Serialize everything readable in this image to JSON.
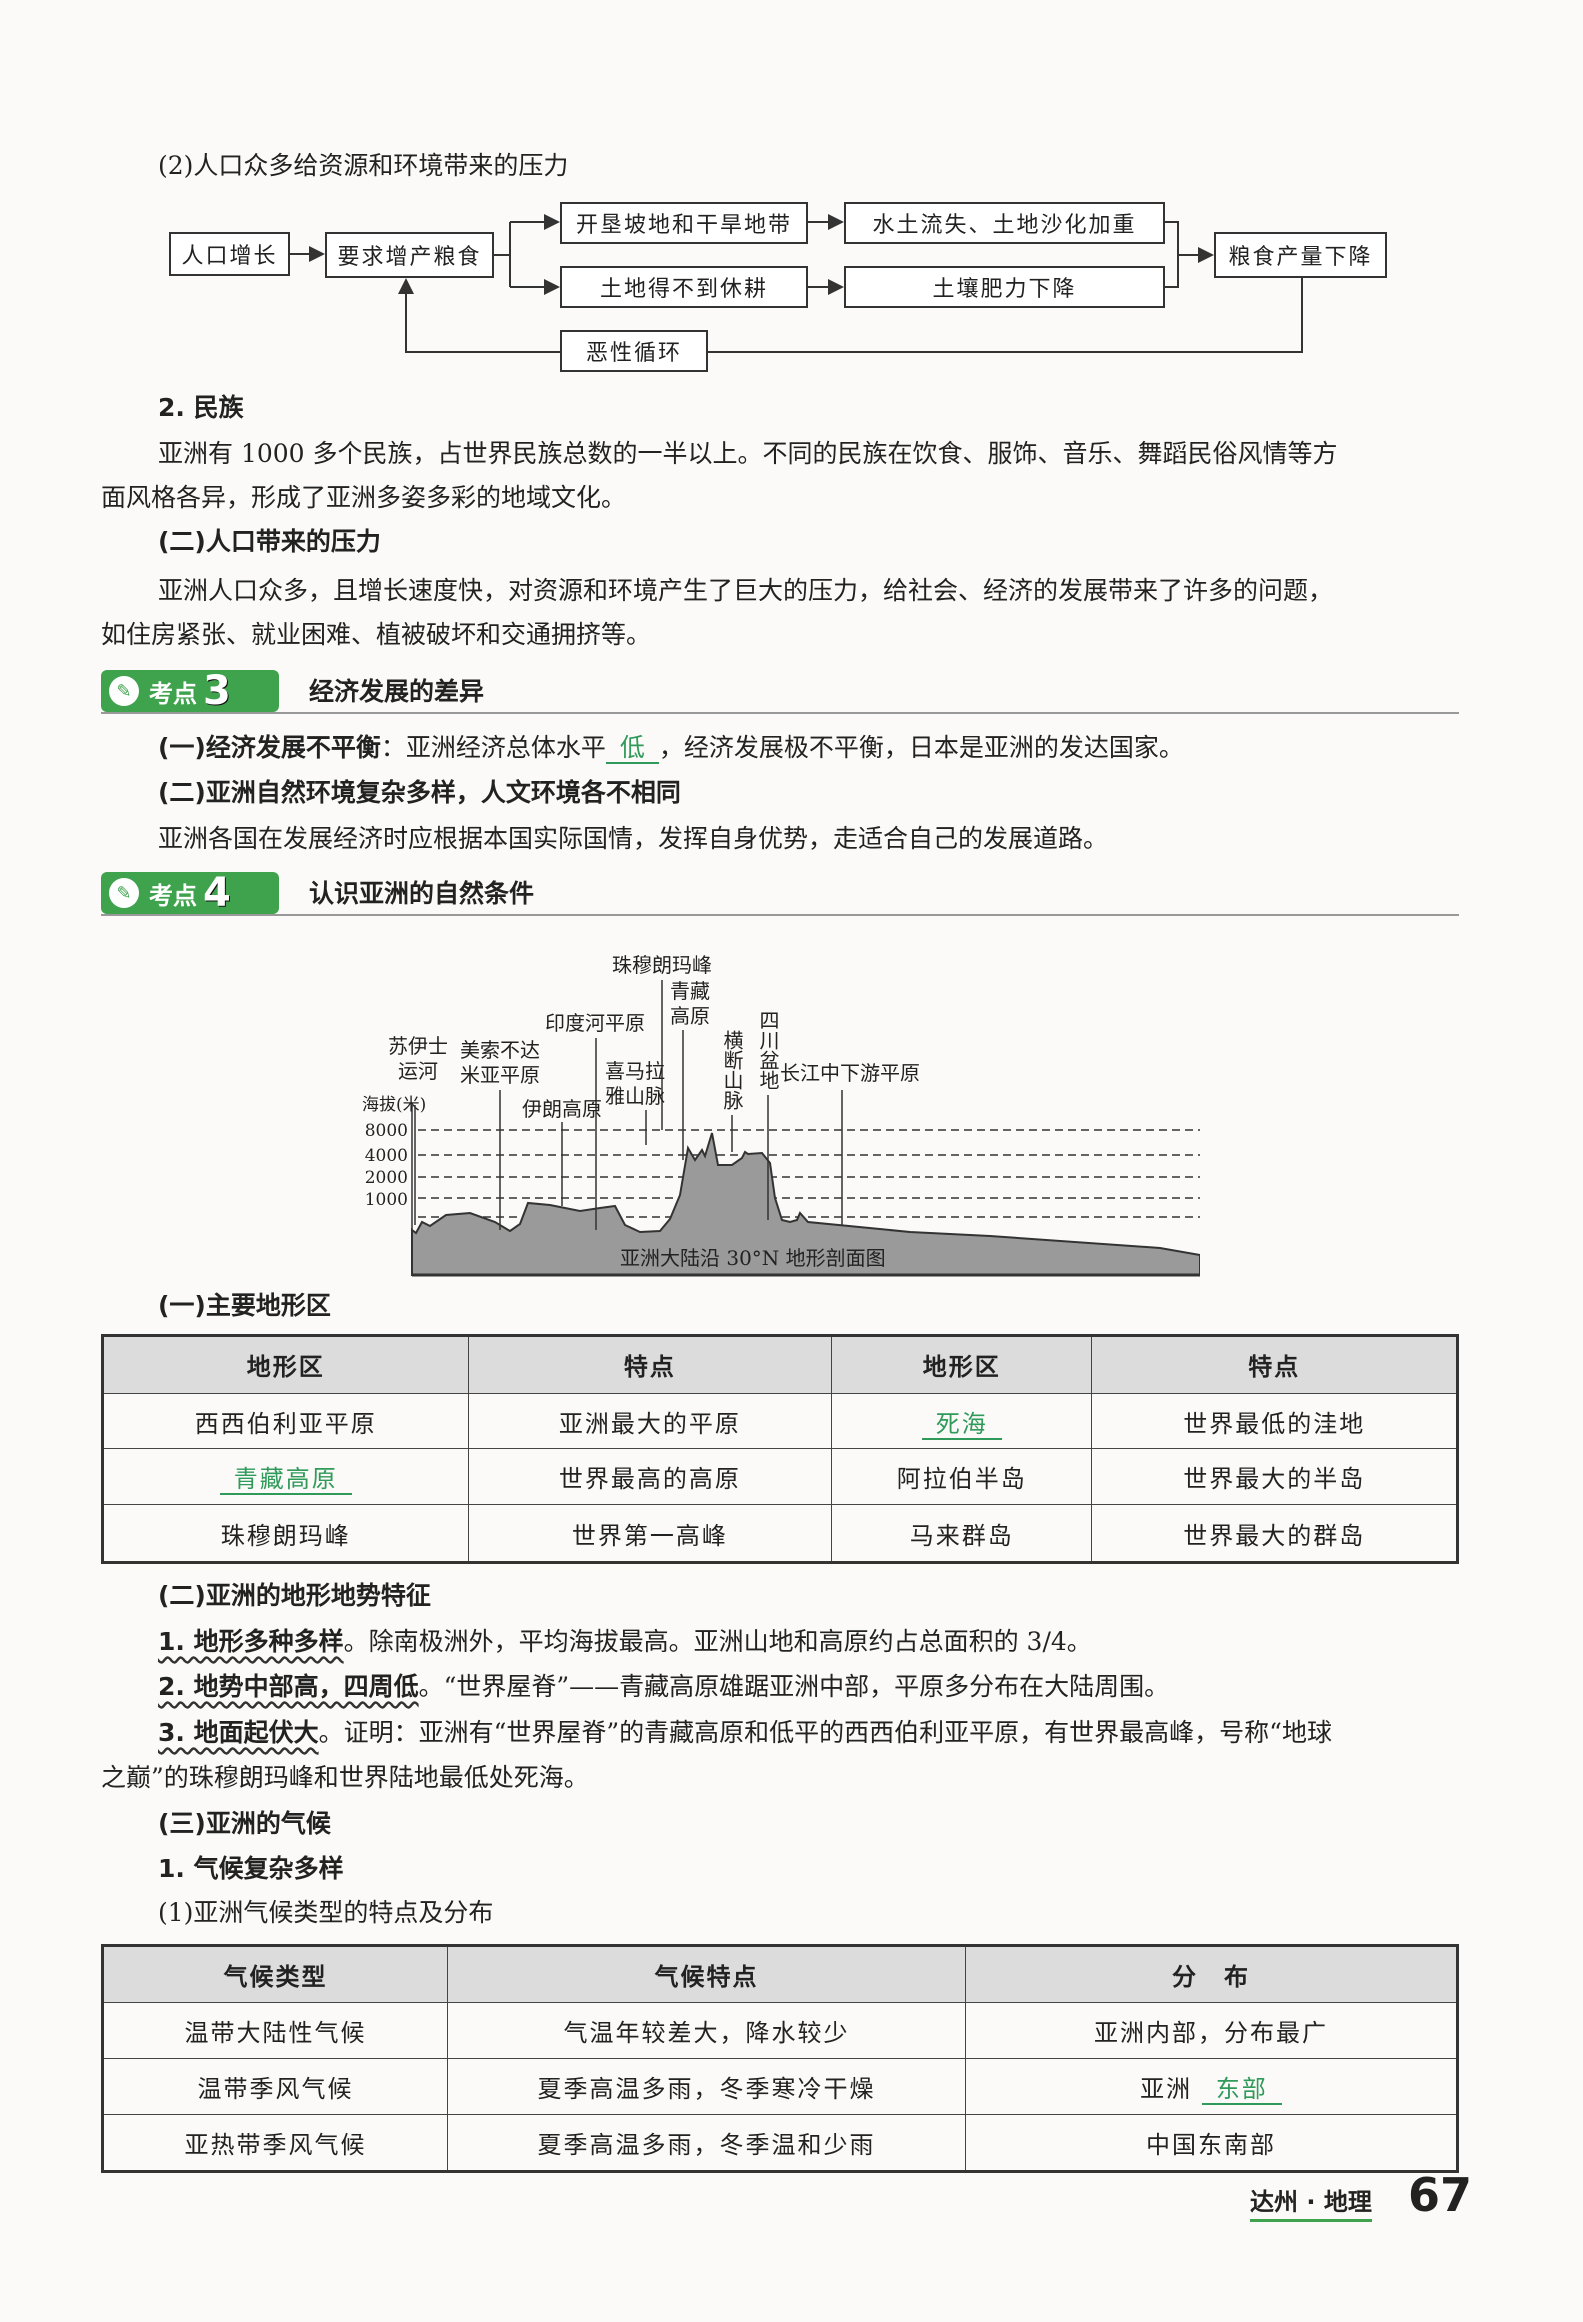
{
  "section1": {
    "title": "(2)人口众多给资源和环境带来的压力",
    "flow": {
      "a": "人口增长",
      "b": "要求增产粮食",
      "c1": "开垦坡地和干旱地带",
      "c2": "土地得不到休耕",
      "d1": "水土流失、土地沙化加重",
      "d2": "土壤肥力下降",
      "e": "粮食产量下降",
      "loop": "恶性循环"
    }
  },
  "ethnic": {
    "heading": "2. 民族",
    "para1": "亚洲有 1000 多个民族，占世界民族总数的一半以上。不同的民族在饮食、服饰、音乐、舞蹈民俗风情等方",
    "para2": "面风格各异，形成了亚洲多姿多彩的地域文化。"
  },
  "pressure": {
    "heading": "(二)人口带来的压力",
    "para1": "亚洲人口众多，且增长速度快，对资源和环境产生了巨大的压力，给社会、经济的发展带来了许多的问题，",
    "para2": "如住房紧张、就业困难、植被破坏和交通拥挤等。"
  },
  "kaodian3": {
    "badge": "考点",
    "num": "3",
    "title": "经济发展的差异",
    "l1a": "(一)经济发展不平衡",
    "l1b": "：亚洲经济总体水平",
    "l1ans": "低",
    "l1c": "，经济发展极不平衡，日本是亚洲的发达国家。",
    "l2": "(二)亚洲自然环境复杂多样，人文环境各不相同",
    "l3": "亚洲各国在发展经济时应根据本国实际国情，发挥自身优势，走适合自己的发展道路。"
  },
  "kaodian4": {
    "badge": "考点",
    "num": "4",
    "title": "认识亚洲的自然条件"
  },
  "profile": {
    "caption": "亚洲大陆沿 30°N 地形剖面图",
    "yaxis": "海拔(米)",
    "ticks": [
      "8000",
      "4000",
      "2000",
      "1000"
    ],
    "labels": {
      "suez1": "苏伊士",
      "suez2": "运河",
      "meso1": "美索不达",
      "meso2": "米亚平原",
      "iran": "伊朗高原",
      "indus": "印度河平原",
      "him1": "喜马拉",
      "him2": "雅山脉",
      "everest": "珠穆朗玛峰",
      "tib1": "青藏",
      "tib2": "高原",
      "heng": "横断山脉",
      "sich": "四川盆地",
      "yangtze": "长江中下游平原"
    }
  },
  "landform": {
    "heading": "(一)主要地形区",
    "headers": [
      "地形区",
      "特点",
      "地形区",
      "特点"
    ],
    "rows": [
      [
        "西西伯利亚平原",
        "亚洲最大的平原",
        "死海",
        "世界最低的洼地"
      ],
      [
        "青藏高原",
        "世界最高的高原",
        "阿拉伯半岛",
        "世界最大的半岛"
      ],
      [
        "珠穆朗玛峰",
        "世界第一高峰",
        "马来群岛",
        "世界最大的群岛"
      ]
    ]
  },
  "terrain": {
    "heading": "(二)亚洲的地形地势特征",
    "p1a": "1. 地形多种多样",
    "p1b": "。除南极洲外，平均海拔最高。亚洲山地和高原约占总面积的 3/4。",
    "p2a": "2. 地势中部高，四周低",
    "p2b": "。“世界屋脊”——青藏高原雄踞亚洲中部，平原多分布在大陆周围。",
    "p3a": "3. 地面起伏大",
    "p3b": "。证明：亚洲有“世界屋脊”的青藏高原和低平的西西伯利亚平原，有世界最高峰，号称“地球",
    "p3c": "之巅”的珠穆朗玛峰和世界陆地最低处死海。"
  },
  "climate": {
    "heading": "(三)亚洲的气候",
    "sub1": "1. 气候复杂多样",
    "sub2": "(1)亚洲气候类型的特点及分布",
    "headers": [
      "气候类型",
      "气候特点",
      "分　布"
    ],
    "rows": [
      [
        "温带大陆性气候",
        "气温年较差大，降水较少",
        "亚洲内部，分布最广"
      ],
      [
        "温带季风气候",
        "夏季高温多雨，冬季寒冷干燥",
        "亚洲",
        ""
      ],
      [
        "亚热带季风气候",
        "夏季高温多雨，冬季温和少雨",
        "中国东南部"
      ]
    ],
    "ans": "东部"
  },
  "footer": {
    "label": "达州 · 地理",
    "page": "67"
  },
  "colors": {
    "accent": "#3fa34d",
    "answer": "#2f9a5a"
  }
}
